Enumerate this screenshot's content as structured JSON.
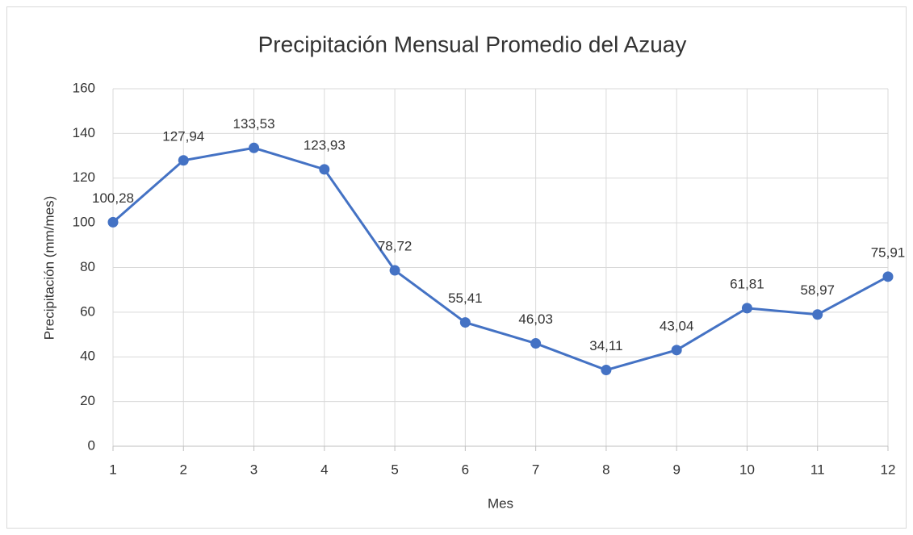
{
  "chart_data": {
    "type": "line",
    "title": "Precipitación Mensual Promedio del Azuay",
    "xlabel": "Mes",
    "ylabel": "Precipitación (mm/mes)",
    "x": [
      1,
      2,
      3,
      4,
      5,
      6,
      7,
      8,
      9,
      10,
      11,
      12
    ],
    "series": [
      {
        "name": "Precipitación",
        "color": "#4472c4",
        "values": [
          100.28,
          127.94,
          133.53,
          123.93,
          78.72,
          55.41,
          46.03,
          34.11,
          43.04,
          61.81,
          58.97,
          75.91
        ],
        "value_labels": [
          "100,28",
          "127,94",
          "133,53",
          "123,93",
          "78,72",
          "55,41",
          "46,03",
          "34,11",
          "43,04",
          "61,81",
          "58,97",
          "75,91"
        ]
      }
    ],
    "xlim": [
      1,
      12
    ],
    "xticks": [
      1,
      2,
      3,
      4,
      5,
      6,
      7,
      8,
      9,
      10,
      11,
      12
    ],
    "ylim": [
      0,
      160
    ],
    "yticks": [
      0,
      20,
      40,
      60,
      80,
      100,
      120,
      140,
      160
    ],
    "grid": true
  }
}
